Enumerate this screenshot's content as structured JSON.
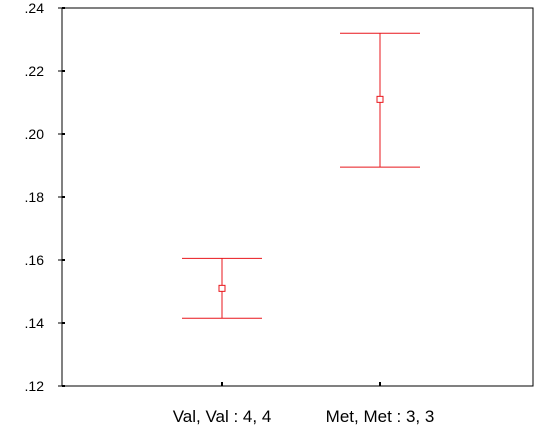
{
  "chart_data": {
    "type": "errorbar",
    "title": "",
    "xlabel": "",
    "ylabel": "",
    "categories": [
      "Val, Val : 4, 4",
      "Met, Met : 3, 3"
    ],
    "series": [
      {
        "points": [
          {
            "category": "Val, Val : 4, 4",
            "mean": 0.151,
            "lower": 0.1415,
            "upper": 0.1605
          },
          {
            "category": "Met, Met : 3, 3",
            "mean": 0.211,
            "lower": 0.1895,
            "upper": 0.232
          }
        ]
      }
    ],
    "ylim": [
      0.12,
      0.24
    ],
    "yticks": [
      0.12,
      0.14,
      0.16,
      0.18,
      0.2,
      0.22,
      0.24
    ],
    "ytick_labels": [
      ".12",
      ".14",
      ".16",
      ".18",
      ".20",
      ".22",
      ".24"
    ],
    "grid": false,
    "colors": {
      "series": "#e8161b",
      "axis": "#000000"
    }
  }
}
